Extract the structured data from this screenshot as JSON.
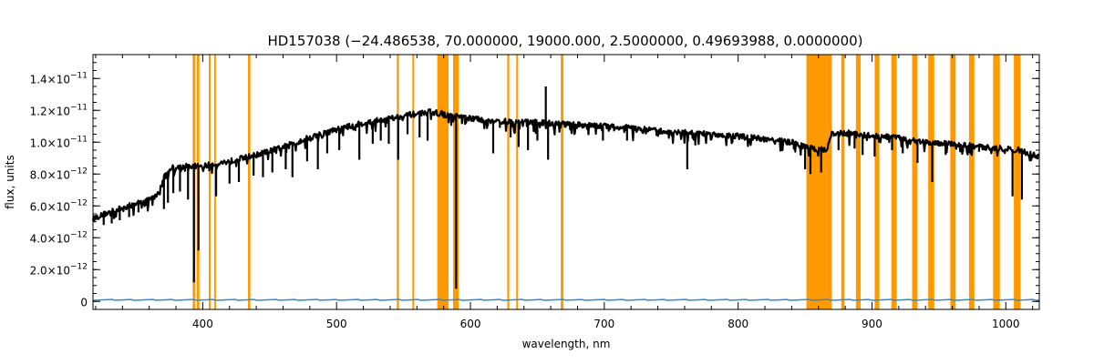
{
  "chart_data": {
    "type": "line",
    "title": "HD157038   (−24.486538, 70.000000, 19000.000, 2.5000000, 0.49693988, 0.0000000)",
    "xlabel": "wavelength, nm",
    "ylabel": "flux, units",
    "xlim": [
      318,
      1025
    ],
    "ylim": [
      -5e-13,
      1.55e-11
    ],
    "x_ticks": [
      400,
      500,
      600,
      700,
      800,
      900,
      1000
    ],
    "x_tick_labels": [
      "400",
      "500",
      "600",
      "700",
      "800",
      "900",
      "1000"
    ],
    "y_ticks": [
      0,
      2e-12,
      4e-12,
      6e-12,
      8e-12,
      1e-11,
      1.2e-11,
      1.4e-11
    ],
    "y_tick_labels": [
      {
        "mant": "0",
        "exp": ""
      },
      {
        "mant": "2.0×10",
        "exp": "−12"
      },
      {
        "mant": "4.0×10",
        "exp": "−12"
      },
      {
        "mant": "6.0×10",
        "exp": "−12"
      },
      {
        "mant": "8.0×10",
        "exp": "−12"
      },
      {
        "mant": "1.0×10",
        "exp": "−11"
      },
      {
        "mant": "1.2×10",
        "exp": "−11"
      },
      {
        "mant": "1.4×10",
        "exp": "−11"
      }
    ],
    "masked_regions": [
      [
        392.5,
        394.5
      ],
      [
        395.5,
        397.5
      ],
      [
        404.5,
        405.5
      ],
      [
        408.5,
        409.8
      ],
      [
        433.8,
        435.6
      ],
      [
        545.0,
        546.6
      ],
      [
        556.6,
        558.0
      ],
      [
        575.2,
        583.6
      ],
      [
        587.0,
        591.2
      ],
      [
        627.5,
        629.0
      ],
      [
        634.2,
        635.6
      ],
      [
        667.5,
        669.5
      ],
      [
        851.0,
        866.0
      ],
      [
        866.0,
        870.0
      ],
      [
        877.0,
        879.5
      ],
      [
        888.0,
        891.5
      ],
      [
        902.0,
        905.5
      ],
      [
        914.5,
        918.5
      ],
      [
        930.0,
        934.0
      ],
      [
        942.0,
        946.5
      ],
      [
        958.5,
        962.5
      ],
      [
        972.5,
        976.5
      ],
      [
        990.5,
        995.5
      ],
      [
        1006.0,
        1011.0
      ]
    ],
    "series": [
      {
        "role": "flux",
        "color": "#000000",
        "x": [
          318,
          330,
          345,
          360,
          365,
          368,
          372,
          376,
          380,
          390,
          400,
          420,
          440,
          460,
          480,
          500,
          520,
          540,
          560,
          570,
          578,
          582,
          590,
          600,
          620,
          640,
          660,
          680,
          700,
          720,
          740,
          760,
          780,
          800,
          820,
          840,
          850,
          856,
          866,
          870,
          880,
          900,
          920,
          940,
          960,
          980,
          1000,
          1010,
          1020,
          1025
        ],
        "y": [
          5.2e-12,
          5.6e-12,
          6e-12,
          6.4e-12,
          6.6e-12,
          7e-12,
          8e-12,
          8.4e-12,
          8.4e-12,
          8.5e-12,
          8.5e-12,
          8.8e-12,
          9.2e-12,
          9.7e-12,
          1.03e-11,
          1.08e-11,
          1.12e-11,
          1.15e-11,
          1.18e-11,
          1.19e-11,
          1.18e-11,
          1.17e-11,
          1.16e-11,
          1.15e-11,
          1.13e-11,
          1.13e-11,
          1.12e-11,
          1.11e-11,
          1.1e-11,
          1.09e-11,
          1.07e-11,
          1.06e-11,
          1.05e-11,
          1.04e-11,
          1.02e-11,
          1e-11,
          9.7e-12,
          9.6e-12,
          9.5e-12,
          1.05e-11,
          1.06e-11,
          1.04e-11,
          1.03e-11,
          1e-11,
          9.9e-12,
          9.7e-12,
          9.6e-12,
          9.5e-12,
          9.2e-12,
          9.1e-12
        ],
        "absorption_lines": [
          {
            "x": 326,
            "y": 4.8e-12
          },
          {
            "x": 332,
            "y": 4.9e-12
          },
          {
            "x": 338,
            "y": 5.1e-12
          },
          {
            "x": 345,
            "y": 5.3e-12
          },
          {
            "x": 352,
            "y": 5.6e-12
          },
          {
            "x": 358,
            "y": 6e-12
          },
          {
            "x": 371,
            "y": 5.8e-12
          },
          {
            "x": 374,
            "y": 6.2e-12
          },
          {
            "x": 378,
            "y": 6.8e-12
          },
          {
            "x": 383,
            "y": 6.9e-12
          },
          {
            "x": 389,
            "y": 6.4e-12
          },
          {
            "x": 393.4,
            "y": 1.2e-12
          },
          {
            "x": 396.8,
            "y": 3.2e-12
          },
          {
            "x": 410,
            "y": 6.6e-12
          },
          {
            "x": 420,
            "y": 7.4e-12
          },
          {
            "x": 427,
            "y": 7.5e-12
          },
          {
            "x": 438,
            "y": 7.9e-12
          },
          {
            "x": 445,
            "y": 7.8e-12
          },
          {
            "x": 452,
            "y": 8.1e-12
          },
          {
            "x": 462,
            "y": 8.3e-12
          },
          {
            "x": 467,
            "y": 7.8e-12
          },
          {
            "x": 478,
            "y": 8.8e-12
          },
          {
            "x": 486,
            "y": 8.3e-12
          },
          {
            "x": 493,
            "y": 9.3e-12
          },
          {
            "x": 502,
            "y": 9.5e-12
          },
          {
            "x": 517,
            "y": 8.9e-12
          },
          {
            "x": 527,
            "y": 9.9e-12
          },
          {
            "x": 533,
            "y": 1.01e-11
          },
          {
            "x": 539,
            "y": 9.9e-12
          },
          {
            "x": 546,
            "y": 8.9e-12
          },
          {
            "x": 553,
            "y": 1.05e-11
          },
          {
            "x": 562,
            "y": 1.03e-11
          },
          {
            "x": 568,
            "y": 1.01e-11
          },
          {
            "x": 589.3,
            "y": 8e-13
          },
          {
            "x": 596,
            "y": 1.11e-11
          },
          {
            "x": 613,
            "y": 1.1e-11
          },
          {
            "x": 617,
            "y": 9.3e-12
          },
          {
            "x": 622,
            "y": 1.09e-11
          },
          {
            "x": 630,
            "y": 1.03e-11
          },
          {
            "x": 636,
            "y": 9.7e-12
          },
          {
            "x": 643,
            "y": 9.5e-12
          },
          {
            "x": 650,
            "y": 1.01e-11
          },
          {
            "x": 658,
            "y": 8.9e-12
          },
          {
            "x": 671,
            "y": 1.09e-11
          },
          {
            "x": 690,
            "y": 1.09e-11
          },
          {
            "x": 699,
            "y": 1.01e-11
          },
          {
            "x": 717,
            "y": 1.01e-11
          },
          {
            "x": 739,
            "y": 1.04e-11
          },
          {
            "x": 762,
            "y": 8.3e-12
          },
          {
            "x": 768,
            "y": 9.8e-12
          },
          {
            "x": 787,
            "y": 1.04e-11
          },
          {
            "x": 810,
            "y": 1.05e-11
          },
          {
            "x": 823,
            "y": 1.02e-11
          },
          {
            "x": 843,
            "y": 9.7e-12
          },
          {
            "x": 850,
            "y": 8.3e-12
          },
          {
            "x": 854,
            "y": 8e-12
          },
          {
            "x": 862,
            "y": 8.1e-12
          },
          {
            "x": 875,
            "y": 9.5e-12
          },
          {
            "x": 887,
            "y": 9.6e-12
          },
          {
            "x": 893,
            "y": 9.2e-12
          },
          {
            "x": 902,
            "y": 9.1e-12
          },
          {
            "x": 915,
            "y": 9.5e-12
          },
          {
            "x": 923,
            "y": 9.3e-12
          },
          {
            "x": 934,
            "y": 8.7e-12
          },
          {
            "x": 945,
            "y": 7.5e-12
          },
          {
            "x": 955,
            "y": 9.2e-12
          },
          {
            "x": 968,
            "y": 9.4e-12
          },
          {
            "x": 980,
            "y": 9.4e-12
          },
          {
            "x": 1005,
            "y": 6.6e-12
          },
          {
            "x": 1012,
            "y": 6.4e-12
          }
        ],
        "emission_peaks": [
          {
            "x": 656.3,
            "y": 1.35e-11
          }
        ]
      },
      {
        "role": "error",
        "color": "#2a8cdc",
        "x": [
          318,
          1025
        ],
        "y": [
          1e-13,
          1e-13
        ]
      }
    ],
    "grid": false,
    "legend": "none"
  },
  "style": {
    "mask_color": "#ff9900",
    "flux_color": "#000000",
    "error_color": "#2a8cdc",
    "axis_color": "#000000"
  }
}
